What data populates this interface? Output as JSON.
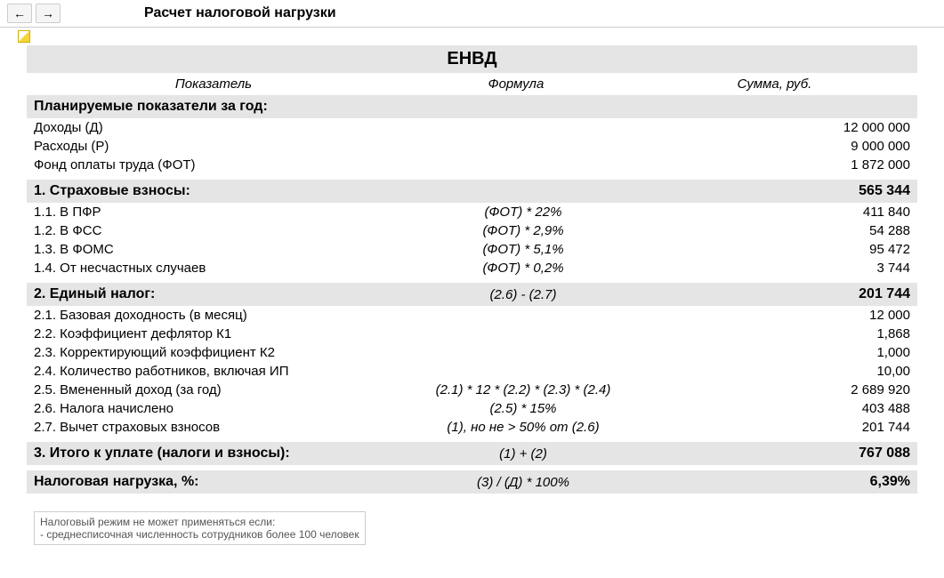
{
  "title": "Расчет налоговой нагрузки",
  "main_header": "ЕНВД",
  "columns": {
    "c1": "Показатель",
    "c2": "Формула",
    "c3": "Сумма, руб."
  },
  "plan": {
    "header": "Планируемые показатели за год:",
    "rows": [
      {
        "label": "Доходы (Д)",
        "formula": "",
        "sum": "12 000 000"
      },
      {
        "label": "Расходы (Р)",
        "formula": "",
        "sum": "9 000 000"
      },
      {
        "label": "Фонд оплаты труда (ФОТ)",
        "formula": "",
        "sum": "1 872 000"
      }
    ]
  },
  "s1": {
    "header": "1. Страховые взносы:",
    "formula": "",
    "sum": "565 344",
    "rows": [
      {
        "label": "1.1. В ПФР",
        "formula": "(ФОТ) * 22%",
        "sum": "411 840"
      },
      {
        "label": "1.2. В ФСС",
        "formula": "(ФОТ) * 2,9%",
        "sum": "54 288"
      },
      {
        "label": "1.3. В ФОМС",
        "formula": "(ФОТ) * 5,1%",
        "sum": "95 472"
      },
      {
        "label": "1.4. От несчастных случаев",
        "formula": "(ФОТ) * 0,2%",
        "sum": "3 744"
      }
    ]
  },
  "s2": {
    "header": "2. Единый налог:",
    "formula": "(2.6) - (2.7)",
    "sum": "201 744",
    "rows": [
      {
        "label": "2.1. Базовая доходность (в месяц)",
        "formula": "",
        "sum": "12 000"
      },
      {
        "label": "2.2. Коэффициент дефлятор К1",
        "formula": "",
        "sum": "1,868"
      },
      {
        "label": "2.3. Корректирующий коэффициент К2",
        "formula": "",
        "sum": "1,000"
      },
      {
        "label": "2.4. Количество работников, включая ИП",
        "formula": "",
        "sum": "10,00"
      },
      {
        "label": "2.5. Вмененный доход (за год)",
        "formula": "(2.1) * 12 * (2.2) * (2.3) * (2.4)",
        "sum": "2 689 920"
      },
      {
        "label": "2.6. Налога начислено",
        "formula": "(2.5) * 15%",
        "sum": "403 488"
      },
      {
        "label": "2.7. Вычет страховых взносов",
        "formula": "(1),  но не > 50% от (2.6)",
        "sum": "201 744"
      }
    ]
  },
  "s3": {
    "header": "3. Итого к уплате (налоги и взносы):",
    "formula": "(1) + (2)",
    "sum": "767 088"
  },
  "burden": {
    "header": "Налоговая нагрузка, %:",
    "formula": "(3) / (Д) * 100%",
    "sum": "6,39%"
  },
  "footnote": {
    "line1": "Налоговый режим не может применяться если:",
    "line2": "- среднесписочная численность сотрудников более 100 человек"
  }
}
